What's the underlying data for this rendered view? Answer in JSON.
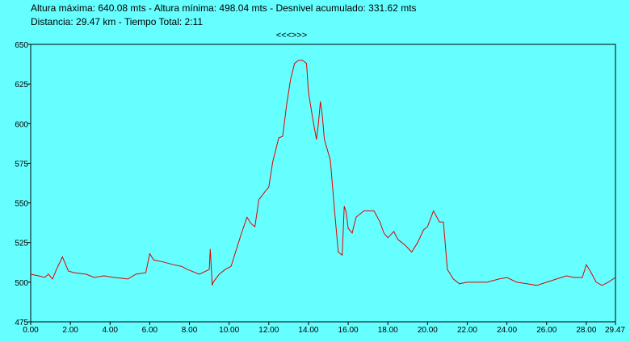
{
  "header": {
    "line1": "Altura máxima: 640.08 mts - Altura mínima: 498.04 mts - Desnivel acumulado: 331.62 mts",
    "line2": "Distancia: 29.47 km - Tiempo Total: 2:11",
    "nav_label": "<<<>>>"
  },
  "colors": {
    "background": "#66ffff",
    "plot_background": "#66ffff",
    "grid": "#0000cc",
    "line": "#dd0000"
  },
  "chart_data": {
    "type": "line",
    "title": "",
    "xlabel": "",
    "ylabel": "",
    "xlim": [
      0,
      29.47
    ],
    "ylim": [
      475,
      650
    ],
    "grid": true,
    "xticks": [
      0,
      2,
      4,
      6,
      8,
      10,
      12,
      14,
      16,
      18,
      20,
      22,
      24,
      26,
      28,
      29.47
    ],
    "xtick_labels": [
      "0.00",
      "2.00",
      "4.00",
      "6.00",
      "8.00",
      "10.00",
      "12.00",
      "14.00",
      "16.00",
      "18.00",
      "20.00",
      "22.00",
      "24.00",
      "26.00",
      "28.00",
      "29.47"
    ],
    "yticks": [
      475,
      500,
      525,
      550,
      575,
      600,
      625,
      650
    ],
    "ytick_labels": [
      "475",
      "500",
      "525",
      "550",
      "575",
      "600",
      "625",
      "650"
    ],
    "series": [
      {
        "x": [
          0,
          0.4,
          0.7,
          0.9,
          1.1,
          1.3,
          1.6,
          1.9,
          2.2,
          2.8,
          3.2,
          3.7,
          4.2,
          4.9,
          5.3,
          5.8,
          6.0,
          6.2,
          6.6,
          7.2,
          7.6,
          7.9,
          8.5,
          9.0,
          9.05,
          9.15,
          9.2,
          9.5,
          9.8,
          10.1,
          10.4,
          10.6,
          10.9,
          11.1,
          11.3,
          11.5,
          11.8,
          12.0,
          12.2,
          12.5,
          12.7,
          12.9,
          13.1,
          13.3,
          13.5,
          13.7,
          13.9,
          14.0,
          14.2,
          14.4,
          14.5,
          14.6,
          14.7,
          14.8,
          15.1,
          15.3,
          15.5,
          15.7,
          15.8,
          15.9,
          16.0,
          16.2,
          16.4,
          16.6,
          16.8,
          17.0,
          17.3,
          17.6,
          17.8,
          18.0,
          18.3,
          18.5,
          18.7,
          18.9,
          19.2,
          19.5,
          19.8,
          20.0,
          20.3,
          20.6,
          20.8,
          21.0,
          21.3,
          21.6,
          22.0,
          22.5,
          23.0,
          23.6,
          24.0,
          24.5,
          25.0,
          25.5,
          26.0,
          26.5,
          27.0,
          27.4,
          27.8,
          28.0,
          28.2,
          28.5,
          28.8,
          29.1,
          29.47
        ],
        "y": [
          505,
          504,
          503,
          505,
          502,
          508,
          516,
          507,
          506,
          505,
          503,
          504,
          503,
          502,
          505,
          506,
          518,
          514,
          513,
          511,
          510,
          508,
          505,
          508,
          521,
          498,
          500,
          505,
          508,
          510,
          522,
          530,
          541,
          537,
          535,
          552,
          557,
          560,
          576,
          591,
          592,
          612,
          628,
          638,
          640,
          640,
          638,
          620,
          604,
          590,
          600,
          614,
          605,
          590,
          577,
          547,
          519,
          517,
          548,
          544,
          534,
          531,
          541,
          543,
          545,
          545,
          545,
          538,
          531,
          528,
          532,
          527,
          525,
          523,
          519,
          525,
          533,
          535,
          545,
          538,
          538,
          508,
          502,
          499,
          500,
          500,
          500,
          502,
          503,
          500,
          499,
          498,
          500,
          502,
          504,
          503,
          503,
          511,
          507,
          500,
          498,
          500,
          503
        ]
      }
    ]
  }
}
